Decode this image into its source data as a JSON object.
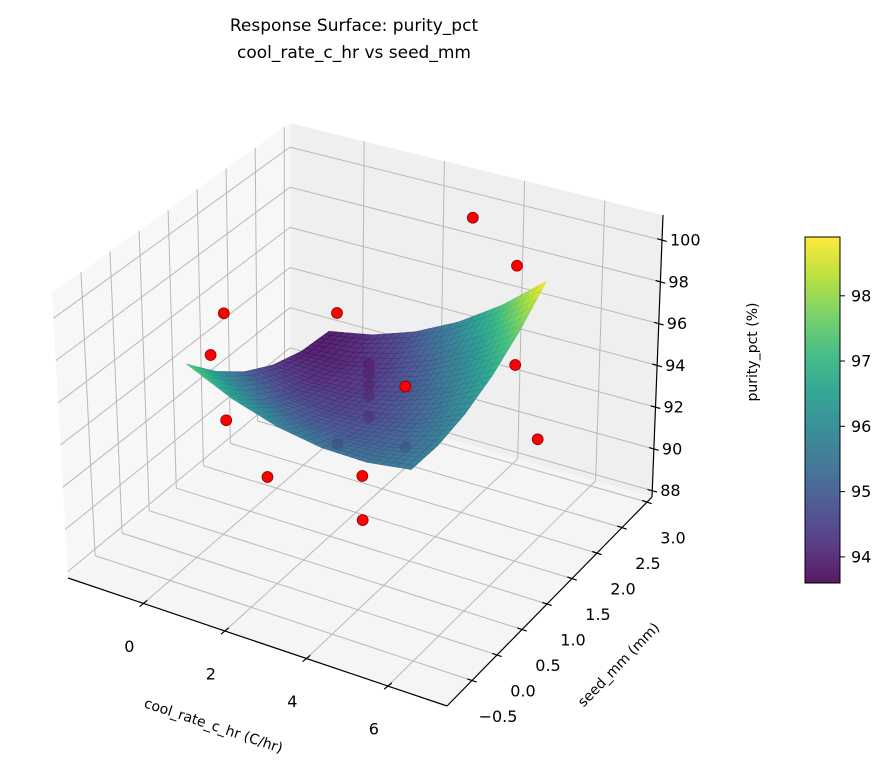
{
  "title": "Response Surface: purity_pct",
  "subtitle": "cool_rate_c_hr vs seed_mm",
  "chart_data": {
    "type": "surface3d",
    "xlabel": "cool_rate_c_hr (C/hr)",
    "ylabel": "seed_mm (mm)",
    "zlabel": "purity_pct (%)",
    "xlim": [
      -1.85,
      7.45
    ],
    "ylim": [
      -1.0,
      3.1
    ],
    "zlim": [
      87.7,
      101.2
    ],
    "xticks": [
      0,
      2,
      4,
      6
    ],
    "xtick_labels": [
      "0",
      "2",
      "4",
      "6"
    ],
    "yticks": [
      -0.5,
      0.0,
      0.5,
      1.0,
      1.5,
      2.0,
      2.5,
      3.0
    ],
    "ytick_labels": [
      "−0.5",
      "0.0",
      "0.5",
      "1.0",
      "1.5",
      "2.0",
      "2.5",
      "3.0"
    ],
    "zticks": [
      88,
      90,
      92,
      94,
      96,
      98,
      100
    ],
    "ztick_labels": [
      "88",
      "90",
      "92",
      "94",
      "96",
      "98",
      "100"
    ],
    "grid": true,
    "surface": {
      "colormap": "viridis",
      "x": [
        0.25,
        1.33,
        2.41,
        3.49,
        4.57,
        5.65
      ],
      "y": [
        -0.25,
        0.26,
        0.77,
        1.28,
        1.79,
        2.3
      ],
      "z": [
        [
          97.5,
          96.48,
          95.78,
          95.4,
          95.34,
          95.6
        ],
        [
          96.1,
          95.36,
          94.95,
          94.85,
          95.08,
          95.62
        ],
        [
          95.02,
          94.57,
          94.44,
          94.62,
          95.13,
          95.96
        ],
        [
          94.26,
          94.09,
          94.24,
          94.72,
          95.51,
          96.62
        ],
        [
          93.82,
          93.94,
          94.37,
          95.13,
          96.2,
          97.6
        ],
        [
          93.7,
          94.1,
          94.82,
          95.86,
          97.22,
          98.9
        ]
      ]
    },
    "points_color": "#ff0000",
    "points": [
      {
        "x": -0.55,
        "y": 1.0,
        "z": 96.9
      },
      {
        "x": -0.9,
        "y": 1.0,
        "z": 94.7
      },
      {
        "x": -0.55,
        "y": 1.0,
        "z": 91.75
      },
      {
        "x": 1.0,
        "y": 0.6,
        "z": 90.8
      },
      {
        "x": 1.0,
        "y": 1.9,
        "z": 95.85
      },
      {
        "x": 1.0,
        "y": 1.9,
        "z": 89.5
      },
      {
        "x": 3.0,
        "y": 1.0,
        "z": 96.4
      },
      {
        "x": 3.0,
        "y": 1.0,
        "z": 95.95
      },
      {
        "x": 3.0,
        "y": 1.0,
        "z": 95.4
      },
      {
        "x": 3.0,
        "y": 1.0,
        "z": 94.9
      },
      {
        "x": 3.0,
        "y": 1.0,
        "z": 93.9
      },
      {
        "x": 4.85,
        "y": -0.55,
        "z": 95.5
      },
      {
        "x": 4.85,
        "y": -0.55,
        "z": 93.5
      },
      {
        "x": 5.0,
        "y": 0.15,
        "z": 98.2
      },
      {
        "x": 5.0,
        "y": 0.15,
        "z": 95.4
      },
      {
        "x": 3.0,
        "y": 2.9,
        "z": 99.35
      },
      {
        "x": 5.3,
        "y": 2.0,
        "z": 100.1
      },
      {
        "x": 5.3,
        "y": 2.0,
        "z": 95.4
      },
      {
        "x": 7.15,
        "y": 1.0,
        "z": 95.1
      }
    ],
    "colorbar": {
      "range": [
        93.6,
        98.9
      ],
      "ticks": [
        94,
        95,
        96,
        97,
        98
      ],
      "tick_labels": [
        "94",
        "95",
        "96",
        "97",
        "98"
      ]
    }
  }
}
